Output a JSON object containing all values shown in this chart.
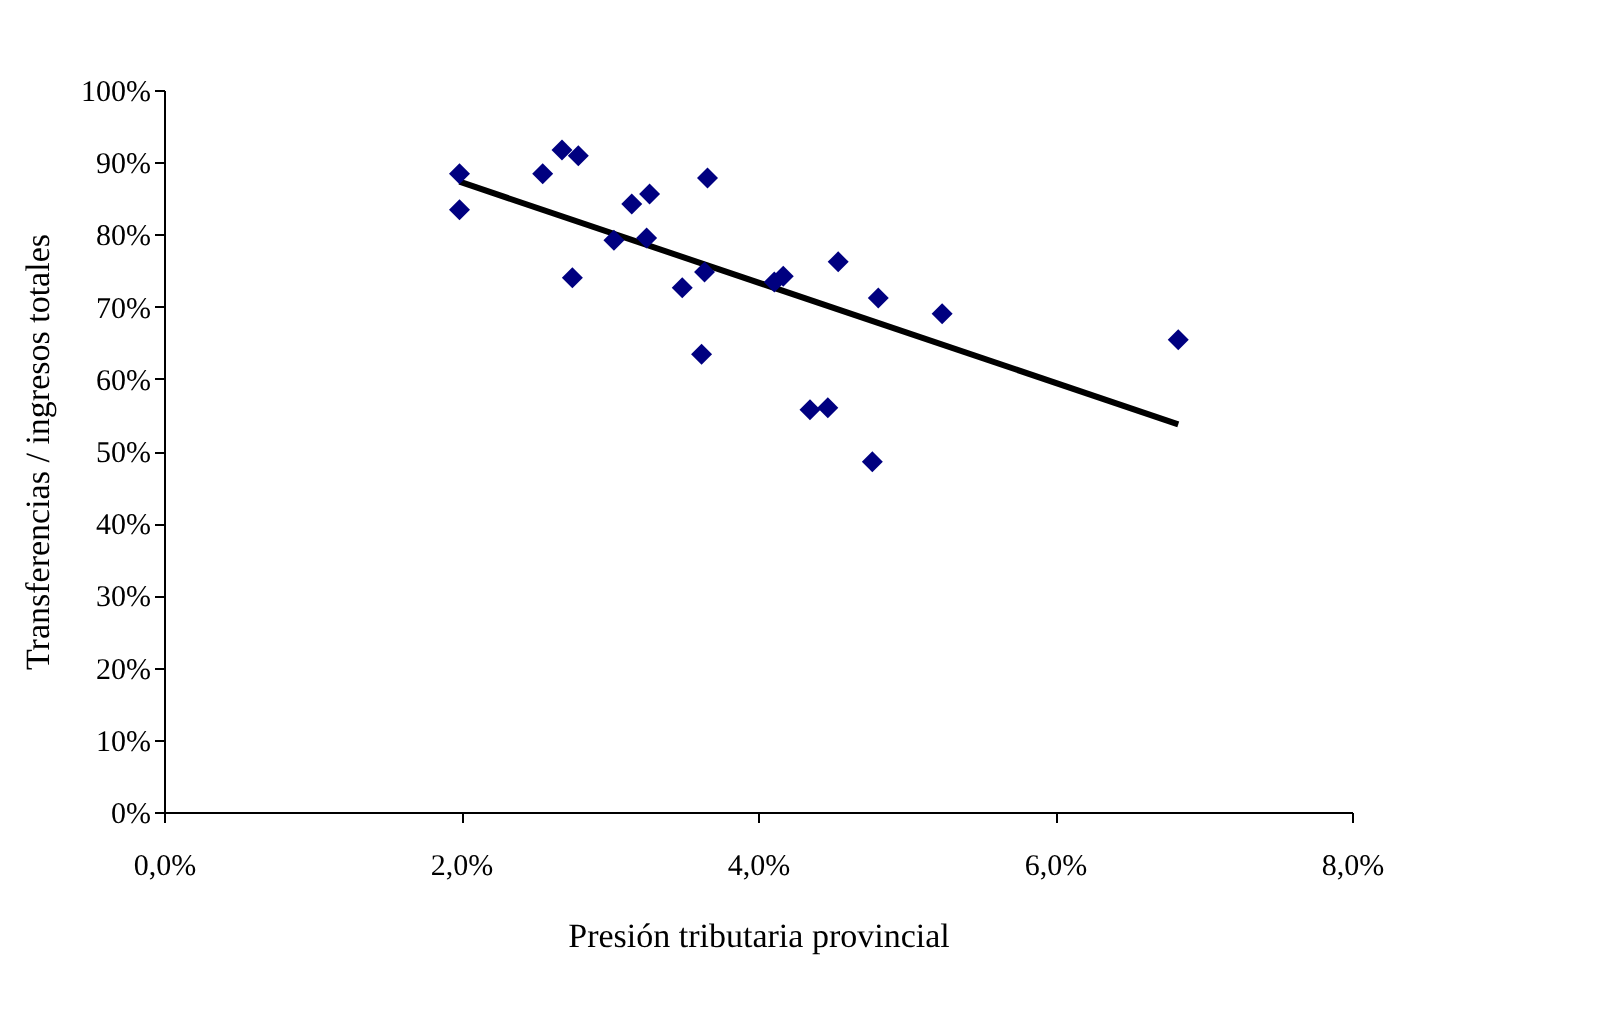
{
  "chart_data": {
    "type": "scatter",
    "xlabel": "Presión tributaria provincial",
    "ylabel": "Transferencias / ingresos totales",
    "xlim": [
      0,
      8
    ],
    "ylim": [
      0,
      100
    ],
    "xticks": [
      {
        "value": 0,
        "label": "0,0%"
      },
      {
        "value": 2,
        "label": "2,0%"
      },
      {
        "value": 4,
        "label": "4,0%"
      },
      {
        "value": 6,
        "label": "6,0%"
      },
      {
        "value": 8,
        "label": "8,0%"
      }
    ],
    "yticks": [
      {
        "value": 0,
        "label": "0%"
      },
      {
        "value": 10,
        "label": "10%"
      },
      {
        "value": 20,
        "label": "20%"
      },
      {
        "value": 30,
        "label": "30%"
      },
      {
        "value": 40,
        "label": "40%"
      },
      {
        "value": 50,
        "label": "50%"
      },
      {
        "value": 60,
        "label": "60%"
      },
      {
        "value": 70,
        "label": "70%"
      },
      {
        "value": 80,
        "label": "80%"
      },
      {
        "value": 90,
        "label": "90%"
      },
      {
        "value": 100,
        "label": "100%"
      }
    ],
    "grid": false,
    "series": [
      {
        "color": "#000080",
        "marker": "diamond",
        "x": [
          1.99,
          1.99,
          2.55,
          2.68,
          2.79,
          2.75,
          3.03,
          3.15,
          3.27,
          3.25,
          3.66,
          3.49,
          3.64,
          3.62,
          4.11,
          4.17,
          4.54,
          4.81,
          4.35,
          4.47,
          4.77,
          5.24,
          6.83
        ],
        "values": [
          88.4,
          83.4,
          88.4,
          91.7,
          90.9,
          74.0,
          79.2,
          84.2,
          85.6,
          79.5,
          87.8,
          72.6,
          74.8,
          63.4,
          73.4,
          74.2,
          76.2,
          71.2,
          55.7,
          56.0,
          48.5,
          69.0,
          65.4
        ]
      },
      {
        "type": "line",
        "color": "#000000",
        "line_style": "solid",
        "x": [
          1.99,
          6.83
        ],
        "values": [
          87.3,
          53.7
        ]
      }
    ]
  }
}
